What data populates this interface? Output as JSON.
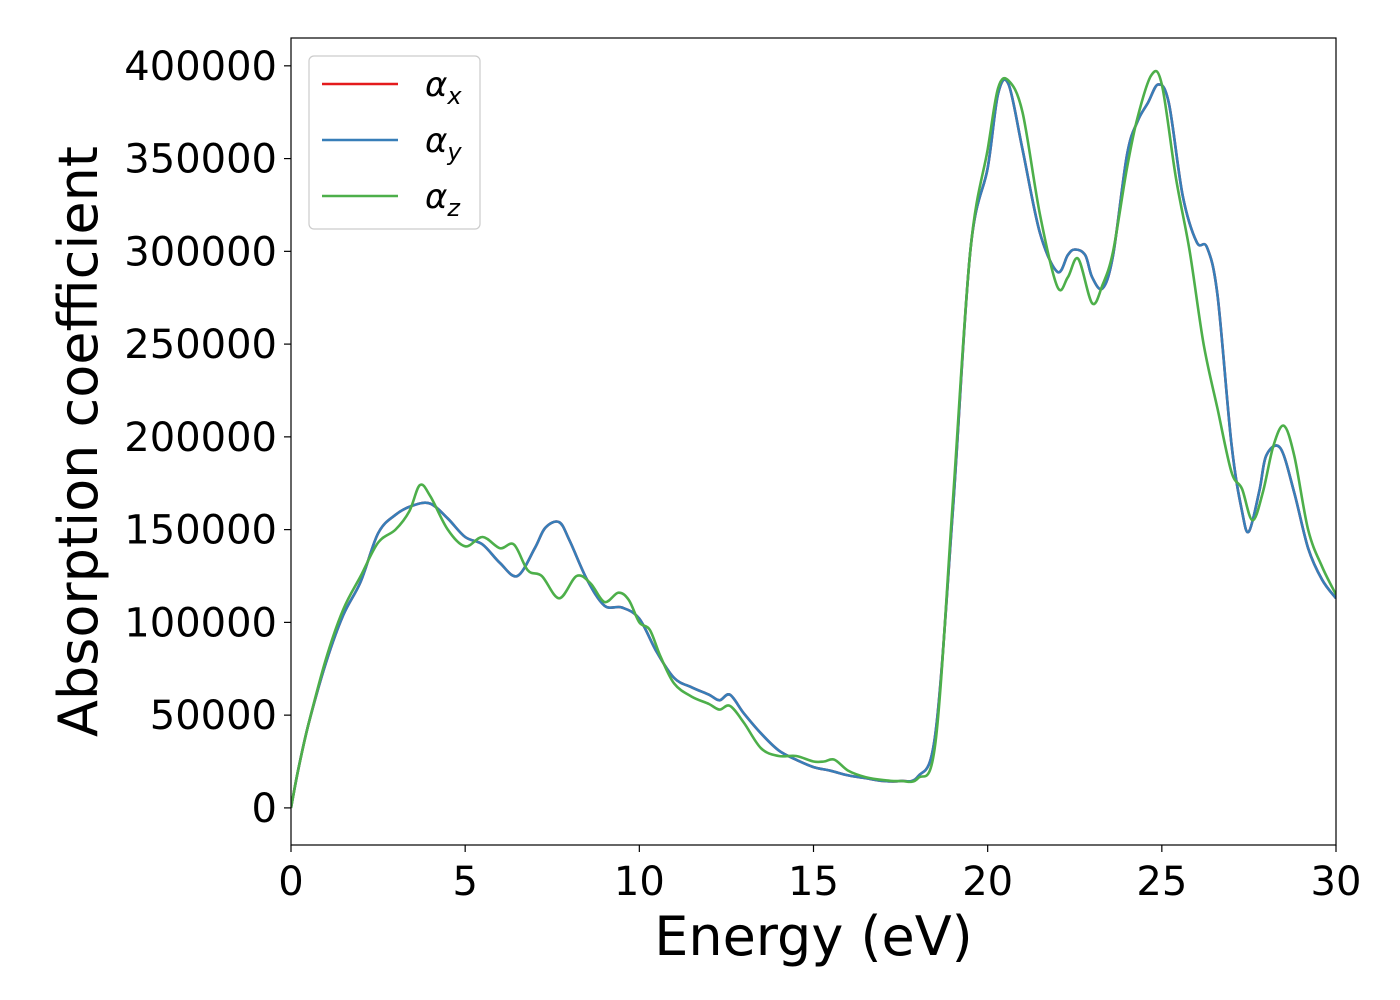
{
  "chart_data": {
    "type": "line",
    "title": "",
    "xlabel": "Energy (eV)",
    "ylabel": "Absorption coefficient",
    "xlim": [
      0,
      30
    ],
    "ylim": [
      -20000,
      415000
    ],
    "xticks": [
      0,
      5,
      10,
      15,
      20,
      25,
      30
    ],
    "yticks": [
      0,
      50000,
      100000,
      150000,
      200000,
      250000,
      300000,
      350000,
      400000
    ],
    "xtick_labels": [
      "0",
      "5",
      "10",
      "15",
      "20",
      "25",
      "30"
    ],
    "ytick_labels": [
      "0",
      "50000",
      "100000",
      "150000",
      "200000",
      "250000",
      "300000",
      "350000",
      "400000"
    ],
    "grid": false,
    "legend_position": "top-left",
    "series": [
      {
        "name": "αx",
        "name_base": "α",
        "name_sub": "x",
        "color": "#e41a1c",
        "x": [
          0,
          0.2,
          0.5,
          1,
          1.5,
          2,
          2.5,
          3,
          3.5,
          4,
          4.5,
          5,
          5.5,
          6,
          6.5,
          7,
          7.3,
          7.7,
          8,
          8.5,
          9,
          9.5,
          10,
          10.5,
          11,
          11.5,
          12,
          12.3,
          12.6,
          13,
          13.5,
          14,
          14.5,
          15,
          15.5,
          16,
          16.5,
          17,
          17.5,
          18,
          18.5,
          19,
          19.5,
          20,
          20.3,
          20.6,
          21,
          21.5,
          22,
          22.3,
          22.5,
          22.8,
          23,
          23.3,
          23.6,
          24,
          24.3,
          24.6,
          24.9,
          25.2,
          25.6,
          26,
          26.3,
          26.6,
          27,
          27.3,
          27.5,
          27.8,
          28,
          28.4,
          28.8,
          29.2,
          29.6,
          30
        ],
        "y": [
          0,
          20000,
          45000,
          78000,
          104000,
          122000,
          148000,
          158000,
          163000,
          164000,
          156000,
          146000,
          142000,
          132000,
          125000,
          140000,
          151000,
          154000,
          144000,
          123000,
          109000,
          108000,
          102000,
          84000,
          70000,
          65000,
          61000,
          58000,
          61000,
          51000,
          40000,
          31000,
          26000,
          22000,
          20000,
          17500,
          16000,
          14500,
          14500,
          17000,
          40000,
          160000,
          300000,
          345000,
          385000,
          390000,
          355000,
          310000,
          289000,
          298000,
          301000,
          298000,
          286000,
          280000,
          298000,
          352000,
          370000,
          380000,
          390000,
          380000,
          330000,
          305000,
          302000,
          276000,
          196000,
          160000,
          149000,
          171000,
          190000,
          194000,
          170000,
          140000,
          123000,
          113000
        ]
      },
      {
        "name": "αy",
        "name_base": "α",
        "name_sub": "y",
        "color": "#377eb8",
        "x": [
          0,
          0.2,
          0.5,
          1,
          1.5,
          2,
          2.5,
          3,
          3.5,
          4,
          4.5,
          5,
          5.5,
          6,
          6.5,
          7,
          7.3,
          7.7,
          8,
          8.5,
          9,
          9.5,
          10,
          10.5,
          11,
          11.5,
          12,
          12.3,
          12.6,
          13,
          13.5,
          14,
          14.5,
          15,
          15.5,
          16,
          16.5,
          17,
          17.5,
          18,
          18.5,
          19,
          19.5,
          20,
          20.3,
          20.6,
          21,
          21.5,
          22,
          22.3,
          22.5,
          22.8,
          23,
          23.3,
          23.6,
          24,
          24.3,
          24.6,
          24.9,
          25.2,
          25.6,
          26,
          26.3,
          26.6,
          27,
          27.3,
          27.5,
          27.8,
          28,
          28.4,
          28.8,
          29.2,
          29.6,
          30
        ],
        "y": [
          0,
          20000,
          45000,
          78000,
          104000,
          122000,
          148000,
          158000,
          163000,
          164000,
          156000,
          146000,
          142000,
          132000,
          125000,
          140000,
          151000,
          154000,
          144000,
          123000,
          109000,
          108000,
          102000,
          84000,
          70000,
          65000,
          61000,
          58000,
          61000,
          51000,
          40000,
          31000,
          26000,
          22000,
          20000,
          17500,
          16000,
          14500,
          14500,
          17000,
          40000,
          160000,
          300000,
          345000,
          385000,
          390000,
          355000,
          310000,
          289000,
          298000,
          301000,
          298000,
          286000,
          280000,
          298000,
          352000,
          370000,
          380000,
          390000,
          380000,
          330000,
          305000,
          302000,
          276000,
          196000,
          160000,
          149000,
          171000,
          190000,
          194000,
          170000,
          140000,
          123000,
          113000
        ]
      },
      {
        "name": "αz",
        "name_base": "α",
        "name_sub": "z",
        "color": "#4daf4a",
        "x": [
          0,
          0.2,
          0.5,
          1,
          1.5,
          2,
          2.5,
          3,
          3.4,
          3.7,
          4,
          4.5,
          5,
          5.5,
          6,
          6.4,
          6.8,
          7.2,
          7.7,
          8.2,
          8.6,
          9,
          9.4,
          9.7,
          10,
          10.3,
          10.6,
          11,
          11.5,
          12,
          12.3,
          12.6,
          13,
          13.5,
          14,
          14.5,
          15,
          15.3,
          15.6,
          16,
          16.5,
          17,
          17.5,
          18,
          18.5,
          19,
          19.5,
          20,
          20.3,
          20.6,
          21,
          21.5,
          22,
          22.3,
          22.6,
          23,
          23.3,
          23.6,
          24,
          24.3,
          24.7,
          25,
          25.4,
          25.8,
          26.2,
          26.6,
          27,
          27.3,
          27.6,
          27.9,
          28.2,
          28.5,
          28.8,
          29.2,
          29.6,
          30
        ],
        "y": [
          0,
          20000,
          45000,
          80000,
          107000,
          125000,
          143000,
          150000,
          160000,
          174000,
          168000,
          150000,
          141000,
          146000,
          140000,
          142000,
          128000,
          125000,
          113000,
          125000,
          121000,
          111000,
          116000,
          112000,
          100000,
          96000,
          82000,
          67000,
          60000,
          56000,
          53000,
          55000,
          46000,
          32000,
          28000,
          28000,
          25000,
          25000,
          26000,
          20000,
          16500,
          15000,
          14500,
          16000,
          35000,
          165000,
          300000,
          355000,
          388000,
          392000,
          375000,
          320000,
          281000,
          286000,
          296000,
          272000,
          282000,
          300000,
          345000,
          372000,
          395000,
          390000,
          340000,
          300000,
          250000,
          215000,
          181000,
          172000,
          155000,
          170000,
          195000,
          206000,
          190000,
          150000,
          130000,
          115000
        ]
      }
    ]
  }
}
